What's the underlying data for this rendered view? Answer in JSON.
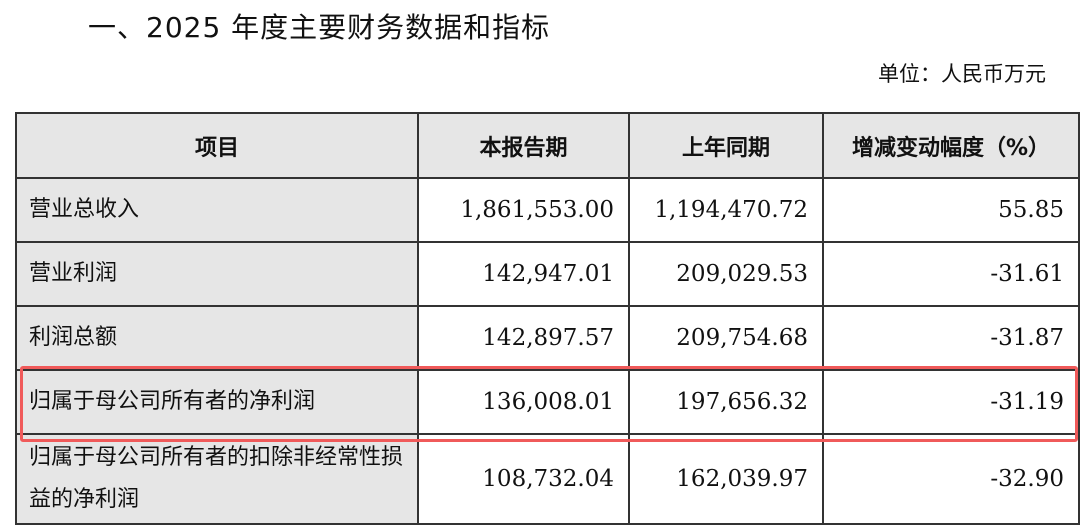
{
  "title": "一、2025 年度主要财务数据和指标",
  "unit": "单位：人民币万元",
  "table": {
    "headers": [
      "项目",
      "本报告期",
      "上年同期",
      "增减变动幅度（%）"
    ],
    "rows": [
      {
        "item": "营业总收入",
        "current": "1,861,553.00",
        "prior": "1,194,470.72",
        "change": "55.85"
      },
      {
        "item": "营业利润",
        "current": "142,947.01",
        "prior": "209,029.53",
        "change": "-31.61"
      },
      {
        "item": "利润总额",
        "current": "142,897.57",
        "prior": "209,754.68",
        "change": "-31.87"
      },
      {
        "item": "归属于母公司所有者的净利润",
        "current": "136,008.01",
        "prior": "197,656.32",
        "change": "-31.19"
      },
      {
        "item": "归属于母公司所有者的扣除非经常性损益的净利润",
        "current": "108,732.04",
        "prior": "162,039.97",
        "change": "-32.90"
      }
    ]
  },
  "highlight_color": "#f05a5a"
}
